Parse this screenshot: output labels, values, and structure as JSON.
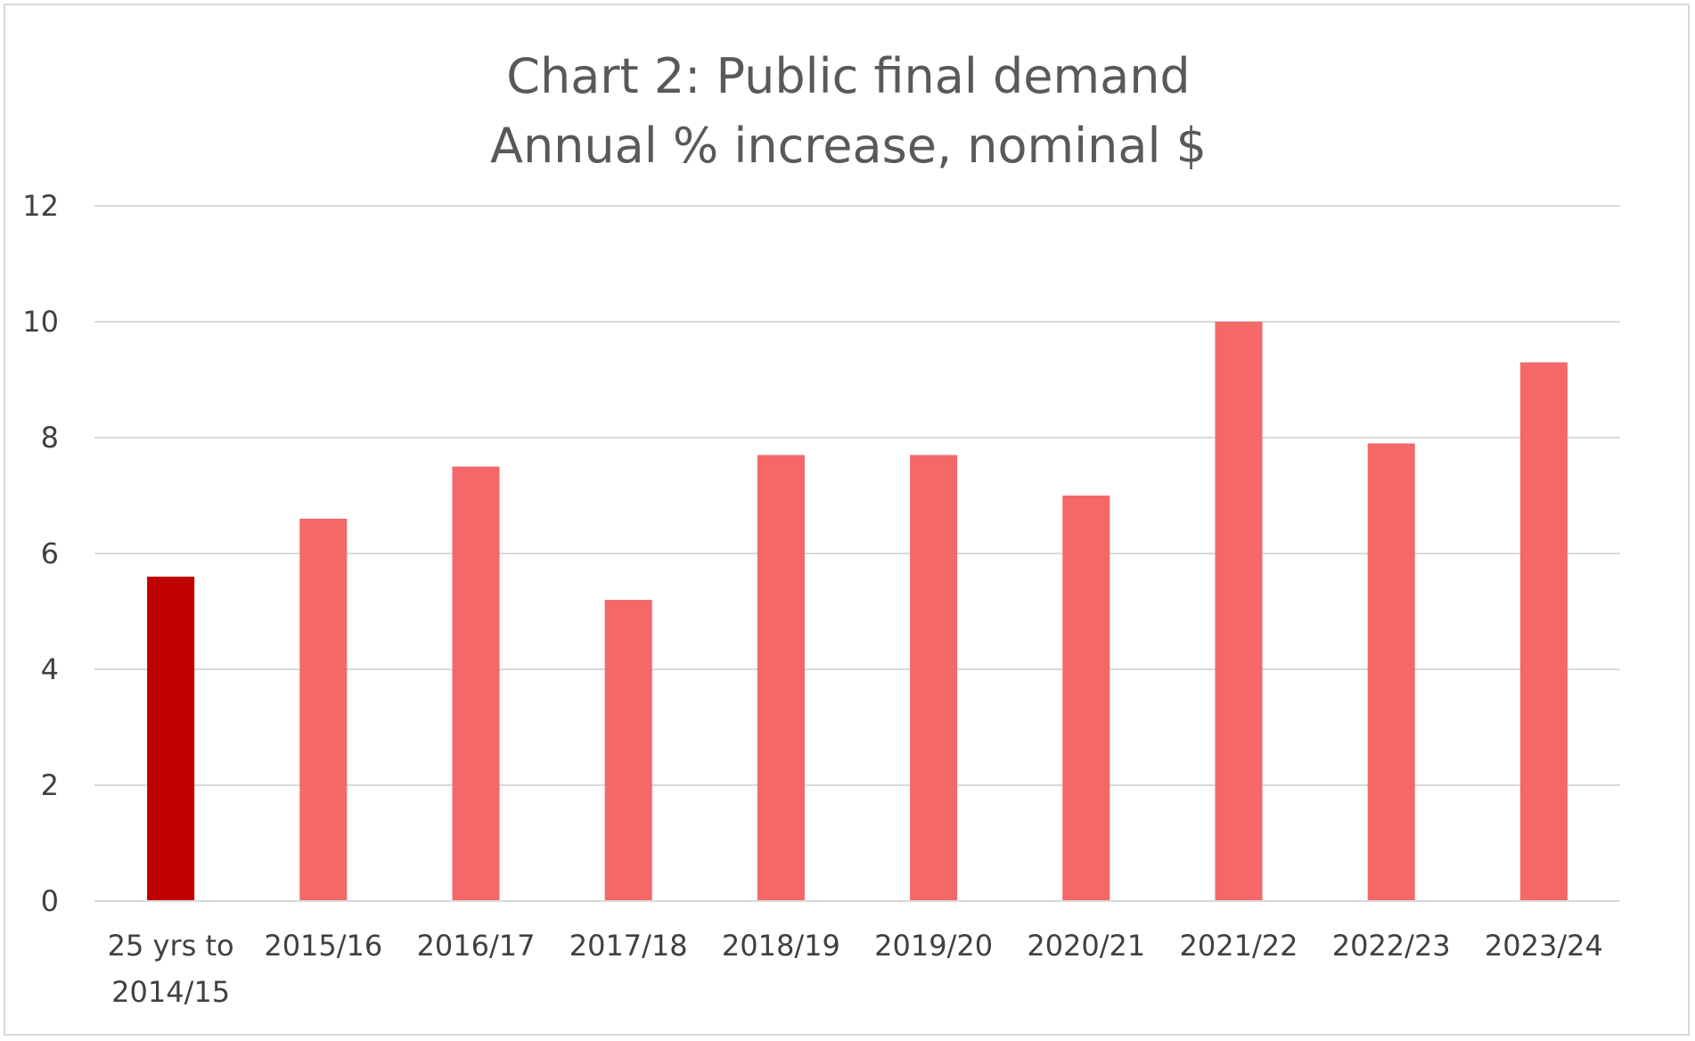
{
  "chart_data": {
    "type": "bar",
    "title_lines": [
      "Chart 2: Public final demand",
      "Annual % increase, nominal $"
    ],
    "categories": [
      [
        "25 yrs to",
        "2014/15"
      ],
      [
        "2015/16"
      ],
      [
        "2016/17"
      ],
      [
        "2017/18"
      ],
      [
        "2018/19"
      ],
      [
        "2019/20"
      ],
      [
        "2020/21"
      ],
      [
        "2021/22"
      ],
      [
        "2022/23"
      ],
      [
        "2023/24"
      ]
    ],
    "values": [
      5.6,
      6.6,
      7.5,
      5.2,
      7.7,
      7.7,
      7.0,
      10.0,
      7.9,
      9.3
    ],
    "bar_colors": [
      "#c00000",
      "#f46868",
      "#f46868",
      "#f46868",
      "#f46868",
      "#f46868",
      "#f46868",
      "#f46868",
      "#f46868",
      "#f46868"
    ],
    "ylim": [
      0,
      12
    ],
    "yticks": [
      0,
      2,
      4,
      6,
      8,
      10,
      12
    ],
    "grid": true,
    "legend": "none",
    "colors": {
      "highlight": "#c00000",
      "bar": "#f46868",
      "grid": "#d9d9d9",
      "text": "#595959"
    }
  }
}
